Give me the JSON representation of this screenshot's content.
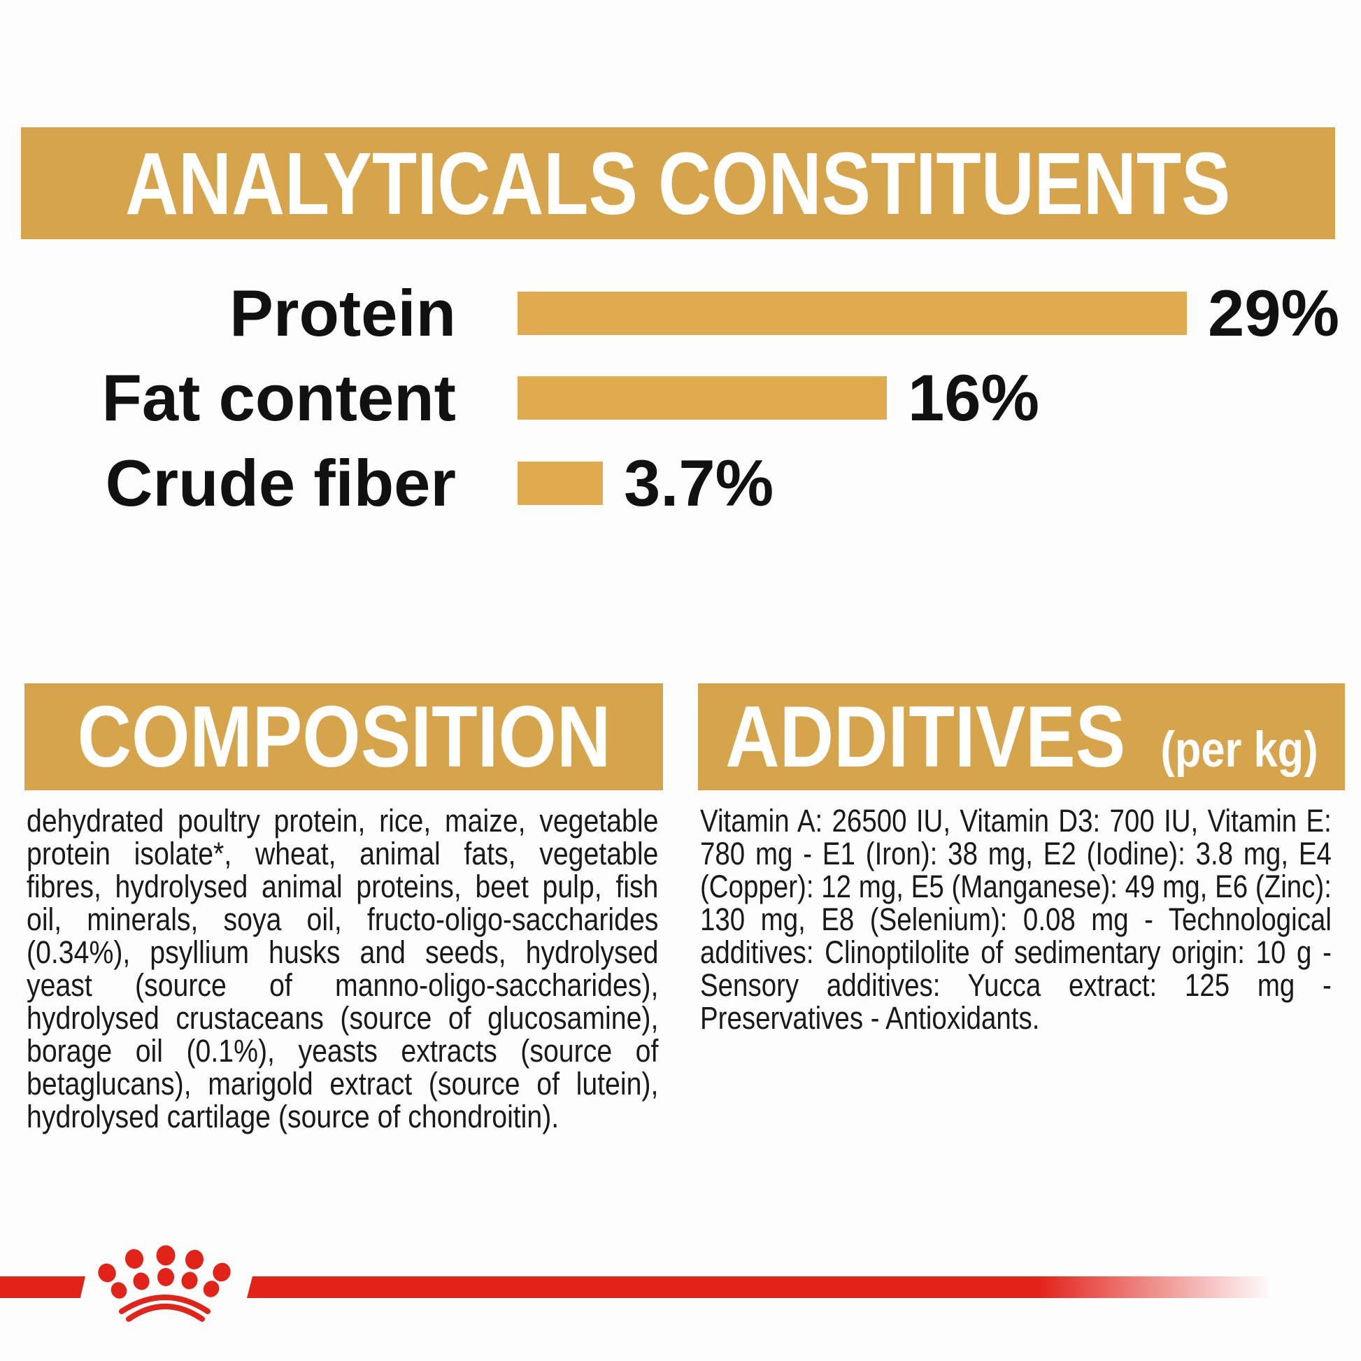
{
  "analyticals": {
    "title": "ANALYTICALS CONSTITUENTS"
  },
  "chart_data": {
    "type": "bar",
    "orientation": "horizontal",
    "title": "ANALYTICALS CONSTITUENTS",
    "categories": [
      "Protein",
      "Fat content",
      "Crude fiber"
    ],
    "values": [
      29,
      16,
      3.7
    ],
    "value_labels": [
      "29%",
      "16%",
      "3.7%"
    ],
    "unit": "%",
    "xlim": [
      0,
      35
    ],
    "bar_color": "#DFAB4E",
    "legend": "none",
    "grid": "off"
  },
  "composition": {
    "heading": "COMPOSITION",
    "text": "dehydrated poultry protein, rice, maize, vegetable protein isolate*, wheat, animal fats, vegetable fibres, hydrolysed animal proteins, beet pulp, fish oil, minerals, soya oil, fructo-oligo-saccharides (0.34%), psyllium husks and seeds, hydrolysed yeast (source of manno-oligo-saccharides), hydrolysed crustaceans (source of glucosamine), borage oil (0.1%), yeasts extracts (source of betaglucans), marigold extract (source of lutein), hydrolysed cartilage (source of chondroitin)."
  },
  "additives": {
    "heading": "ADDITIVES",
    "heading_suffix": "(per kg)",
    "text": "Vitamin A: 26500 IU, Vitamin D3: 700 IU, Vitamin E: 780 mg - E1 (Iron): 38 mg, E2 (Iodine): 3.8 mg, E4 (Copper): 12 mg, E5 (Manganese): 49 mg, E6 (Zinc): 130 mg, E8 (Selenium): 0.08 mg - Technological additives: Clinoptilolite of sedimentary origin: 10 g - Sensory additives: Yucca extract: 125 mg - Preservatives - Antioxidants."
  },
  "colors": {
    "gold_header": "#D6A54B",
    "gold_bar": "#DFAB4E",
    "brand_red": "#E2231A",
    "heading_text": "#FFFFFF",
    "body_text": "#191919"
  },
  "footer": {
    "logo": "royal-canin-crown"
  }
}
